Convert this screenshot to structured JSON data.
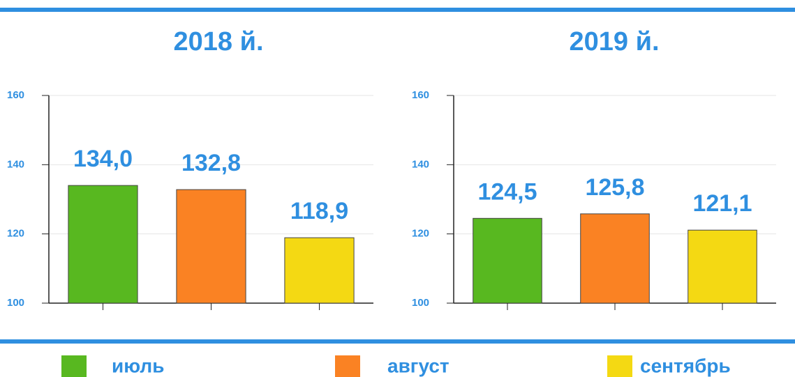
{
  "chart_data": [
    {
      "type": "bar",
      "title": "2018 й.",
      "categories": [
        null,
        null,
        null
      ],
      "values": [
        134.0,
        132.8,
        118.9
      ],
      "value_labels": [
        "134,0",
        "132,8",
        "118,9"
      ],
      "colors": [
        "#58b820",
        "#fa8223",
        "#f4d913"
      ],
      "ylim": [
        100,
        160
      ],
      "yticks": [
        100,
        120,
        140,
        160
      ],
      "grid": true
    },
    {
      "type": "bar",
      "title": "2019 й.",
      "categories": [
        null,
        null,
        null
      ],
      "values": [
        124.5,
        125.8,
        121.1
      ],
      "value_labels": [
        "124,5",
        "125,8",
        "121,1"
      ],
      "colors": [
        "#58b820",
        "#fa8223",
        "#f4d913"
      ],
      "ylim": [
        100,
        160
      ],
      "yticks": [
        100,
        120,
        140,
        160
      ],
      "grid": true
    }
  ],
  "legend": [
    {
      "name": "июль",
      "color": "#58b820"
    },
    {
      "name": "август",
      "color": "#fa8223"
    },
    {
      "name": "сентябрь",
      "color": "#f4d913"
    }
  ]
}
